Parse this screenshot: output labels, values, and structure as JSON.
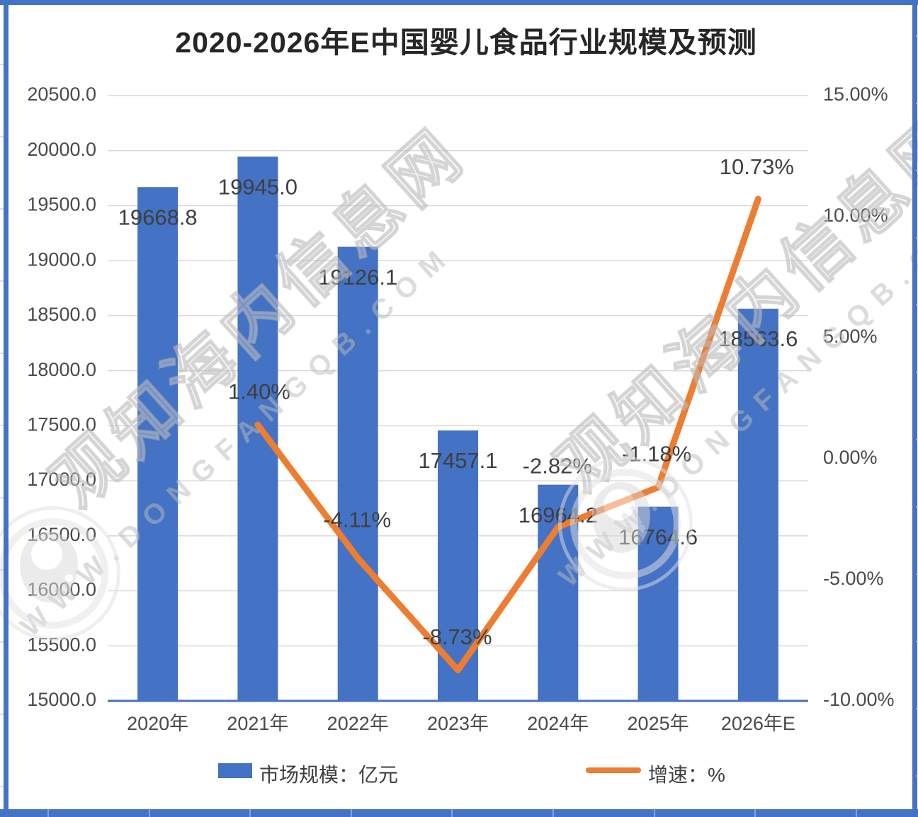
{
  "title": "2020-2026年E中国婴儿食品行业规模及预测",
  "chart_data": {
    "type": "bar",
    "title": "2020-2026年E中国婴儿食品行业规模及预测",
    "categories": [
      "2020年",
      "2021年",
      "2022年",
      "2023年",
      "2024年",
      "2025年",
      "2026年E"
    ],
    "series": [
      {
        "name": "市场规模：亿元",
        "type": "bar",
        "axis": "left",
        "values": [
          19668.8,
          19945.0,
          19126.1,
          17457.1,
          16964.2,
          16764.6,
          18563.6
        ]
      },
      {
        "name": "增速：%",
        "type": "line",
        "axis": "right",
        "values": [
          null,
          1.4,
          -4.11,
          -8.73,
          -2.82,
          -1.18,
          10.73
        ]
      }
    ],
    "left_axis": {
      "min": 15000,
      "max": 20500,
      "step": 500,
      "decimals": 1,
      "suffix": ""
    },
    "right_axis": {
      "min": -10,
      "max": 15,
      "step": 5,
      "decimals": 2,
      "suffix": "%"
    },
    "grid": true,
    "legend_position": "bottom"
  },
  "legend": {
    "items": [
      {
        "label": "市场规模：亿元",
        "swatch": "bar"
      },
      {
        "label": "增速：%",
        "swatch": "line"
      }
    ]
  },
  "watermark": {
    "text": "观知海内信息网",
    "url": "WWW.DONGFANGQB.COM"
  },
  "colors": {
    "bar": "#4472C4",
    "line": "#ED7D31",
    "grid": "#D9D9D9",
    "axis_line": "#4472C4",
    "tick_text": "#4a4a4a",
    "data_label": "#3f3f3f",
    "title_text": "#262626",
    "frame": "#4472C4",
    "watermark_gray": "#c9c9c9"
  }
}
